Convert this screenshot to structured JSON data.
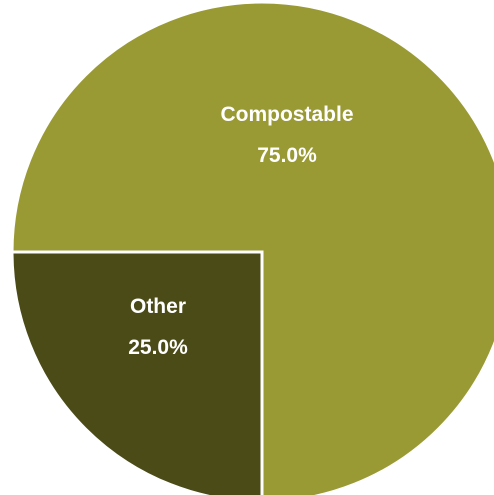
{
  "chart_data": {
    "type": "pie",
    "title": "",
    "slices": [
      {
        "label": "Compostable",
        "value": 75.0,
        "value_label": "75.0%",
        "color": "#9a9a35"
      },
      {
        "label": "Other",
        "value": 25.0,
        "value_label": "25.0%",
        "color": "#4b4b18"
      }
    ],
    "start_angle_deg": 180,
    "direction": "clockwise",
    "separator_color": "#ffffff",
    "legend": "none"
  }
}
